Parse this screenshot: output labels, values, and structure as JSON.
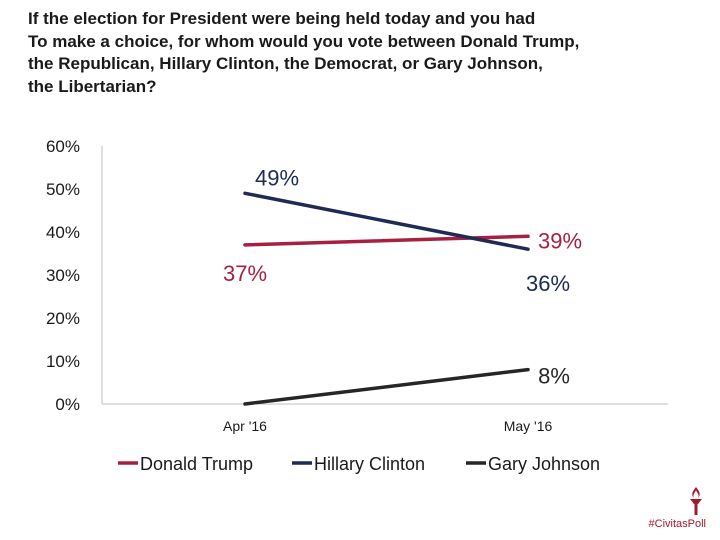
{
  "title_lines": [
    "If the election for President were being held today and you had",
    "To make a choice, for whom would you vote between Donald Trump,",
    "the Republican, Hillary Clinton, the Democrat, or Gary Johnson,",
    "the Libertarian?"
  ],
  "brand": {
    "text": "#CivitasPoll",
    "icon": "torch-icon",
    "color": "#a01a2c"
  },
  "chart_data": {
    "type": "line",
    "categories": [
      "Apr '16",
      "May '16"
    ],
    "series": [
      {
        "name": "Donald Trump",
        "color": "#a8203f",
        "values": [
          37,
          39
        ],
        "labels": [
          "37%",
          "39%"
        ]
      },
      {
        "name": "Hillary Clinton",
        "color": "#1f2a55",
        "values": [
          49,
          36
        ],
        "labels": [
          "49%",
          "36%"
        ]
      },
      {
        "name": "Gary Johnson",
        "color": "#262626",
        "values": [
          0,
          8
        ],
        "labels": [
          "",
          "8%"
        ]
      }
    ],
    "ylim": [
      0,
      60
    ],
    "yticks": [
      "0%",
      "10%",
      "20%",
      "30%",
      "40%",
      "50%",
      "60%"
    ],
    "grid": false,
    "legend": "bottom"
  }
}
